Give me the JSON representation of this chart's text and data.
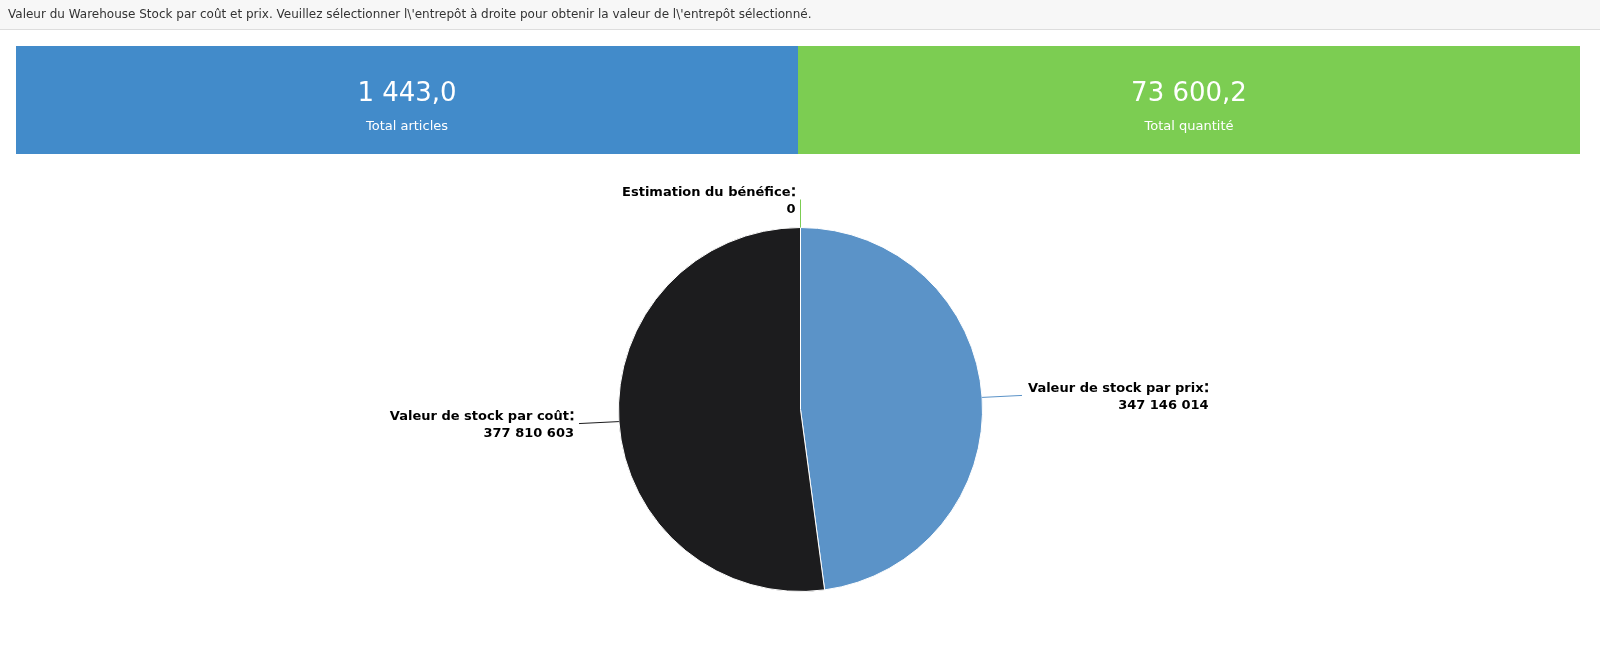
{
  "chart_data": [
    {
      "type": "other",
      "title": "Valeur du Warehouse Stock par coût et prix. Veuillez sélectionner l\\'entrepôt à droite pour obtenir la valeur de l\\'entrepôt sélectionné.",
      "annotations": [
        "1 443,0",
        "Total articles"
      ],
      "color": "#428bca"
    },
    {
      "type": "other",
      "annotations": [
        "73 600,2",
        "Total quantité"
      ],
      "color": "#7ccd52"
    },
    {
      "type": "pie",
      "categories": [
        "Valeur de stock par prix",
        "Valeur de stock par coût",
        "Estimation du bénéfice"
      ],
      "values": [
        347146014,
        377810603,
        0
      ],
      "value_labels": [
        "347 146 014",
        "377 810 603",
        "0"
      ],
      "colors": [
        "#5b93c8",
        "#1c1c1e",
        "#7ccd52"
      ]
    }
  ]
}
